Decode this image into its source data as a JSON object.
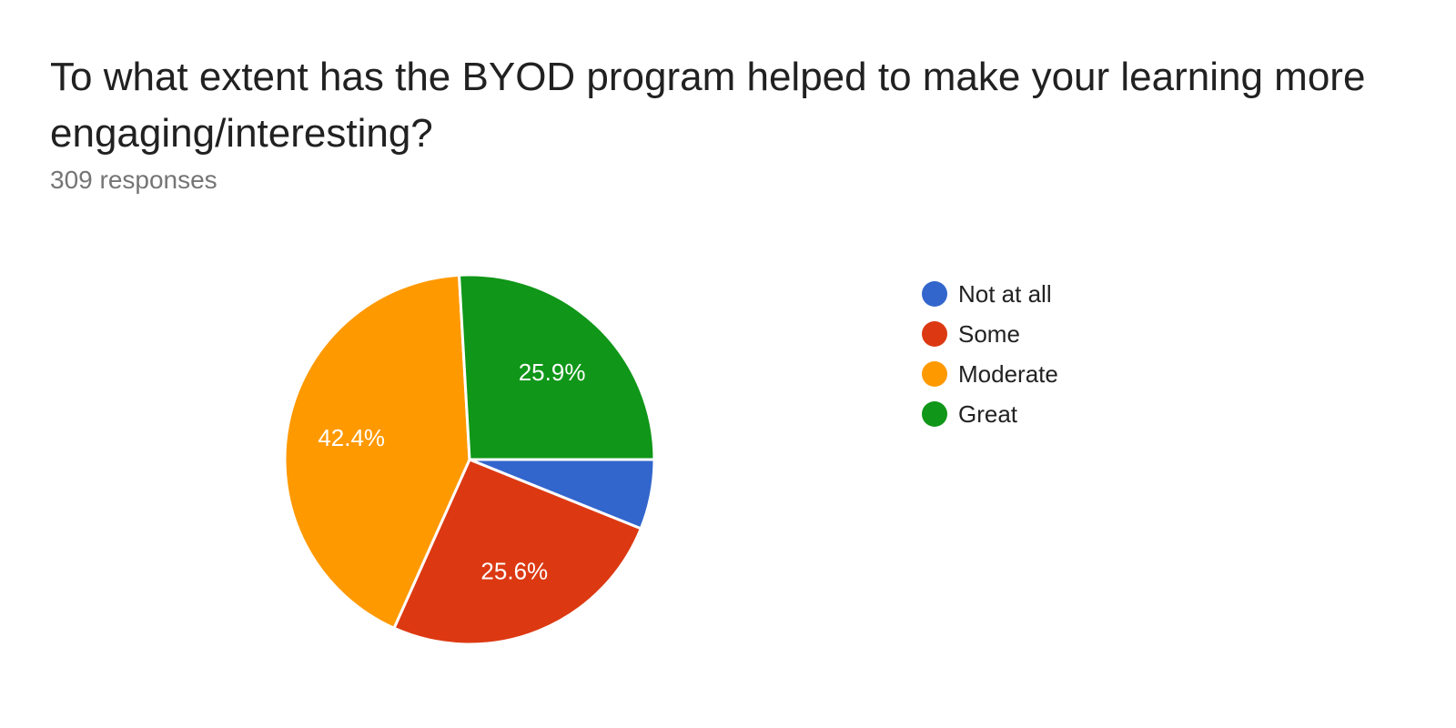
{
  "title": "To what extent has the BYOD program helped to make your learning more engaging/interesting?",
  "subtitle": "309 responses",
  "chart_data": {
    "type": "pie",
    "title": "To what extent has the BYOD program helped to make your learning more engaging/interesting?",
    "total_responses": 309,
    "legend_position": "right",
    "slices": [
      {
        "name": "Not at all",
        "percent": 6.1,
        "label": "",
        "color": "#3366cc"
      },
      {
        "name": "Some",
        "percent": 25.6,
        "label": "25.6%",
        "color": "#dc3912"
      },
      {
        "name": "Moderate",
        "percent": 42.4,
        "label": "42.4%",
        "color": "#ff9900"
      },
      {
        "name": "Great",
        "percent": 25.9,
        "label": "25.9%",
        "color": "#109618"
      }
    ]
  }
}
